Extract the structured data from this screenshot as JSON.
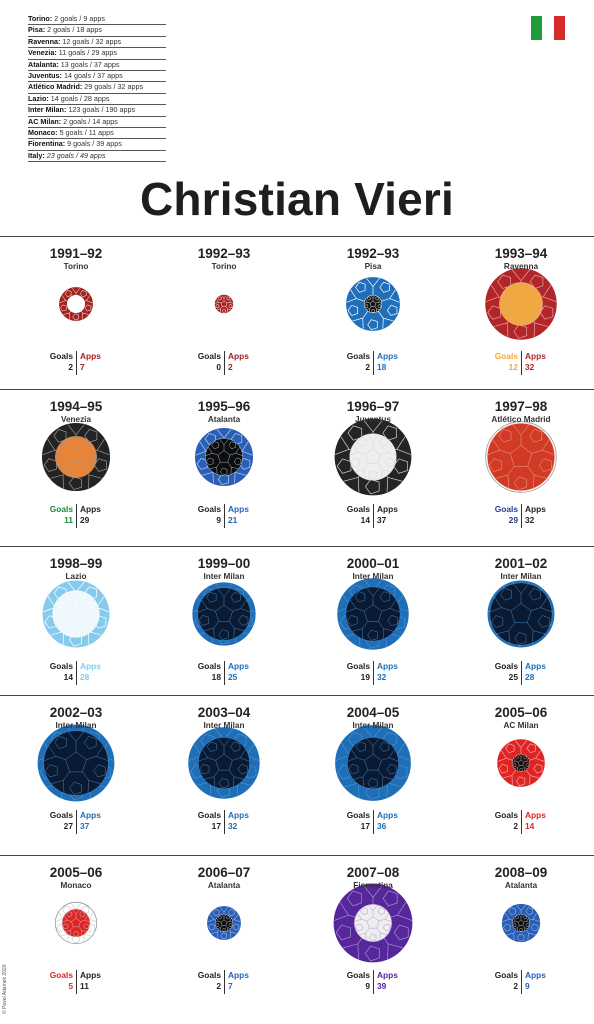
{
  "title": "Christian Vieri",
  "credit": "© Pavel Adamek 2020",
  "flag": {
    "colors": [
      "#1e9b3b",
      "#ffffff",
      "#d42b2b"
    ]
  },
  "summary": [
    {
      "club": "Torino:",
      "stats": "2 goals / 9 apps",
      "italic": false
    },
    {
      "club": "Pisa:",
      "stats": "2 goals / 18 apps",
      "italic": false
    },
    {
      "club": "Ravenna:",
      "stats": "12 goals / 32 apps",
      "italic": false
    },
    {
      "club": "Venezia:",
      "stats": "11 goals / 29 apps",
      "italic": false
    },
    {
      "club": "Atalanta:",
      "stats": "13 goals / 37 apps",
      "italic": false
    },
    {
      "club": "Juventus:",
      "stats": "14 goals / 37 apps",
      "italic": false
    },
    {
      "club": "Atlético Madrid:",
      "stats": "29 goals / 32 apps",
      "italic": false
    },
    {
      "club": "Lazio:",
      "stats": "14 goals / 28 apps",
      "italic": false
    },
    {
      "club": "Inter Milan:",
      "stats": "123 goals / 190 apps",
      "italic": false
    },
    {
      "club": "AC Milan:",
      "stats": "2 goals / 14 apps",
      "italic": false
    },
    {
      "club": "Monaco:",
      "stats": "5 goals / 11 apps",
      "italic": false
    },
    {
      "club": "Fiorentina:",
      "stats": "9 goals / 39 apps",
      "italic": false
    },
    {
      "club": "Italy:",
      "stats": "23 goals / 49 apps",
      "italic": true
    }
  ],
  "labels": {
    "goals": "Goals",
    "apps": "Apps"
  },
  "chart_data": {
    "type": "scatter",
    "encoding": "proportional-area balls: outer ball area = appearances, inner ball area = goals",
    "title": "Christian Vieri",
    "seasons": [
      {
        "season": "1991–92",
        "club": "Torino",
        "goals": 2,
        "apps": 7,
        "outer": "#a3231f",
        "inner": "#ffffff",
        "line": "#ffffff",
        "goalsColor": "#222222",
        "appsColor": "#a3231f"
      },
      {
        "season": "1992–93",
        "club": "Torino",
        "goals": 0,
        "apps": 2,
        "outer": "#a3231f",
        "inner": "#ffffff",
        "line": "#ffffff",
        "goalsColor": "#222222",
        "appsColor": "#a3231f"
      },
      {
        "season": "1992–93",
        "club": "Pisa",
        "goals": 2,
        "apps": 18,
        "outer": "#1f6fba",
        "inner": "#111111",
        "line": "#ffffff",
        "goalsColor": "#222222",
        "appsColor": "#1f6fba"
      },
      {
        "season": "1993–94",
        "club": "Ravenna",
        "goals": 12,
        "apps": 32,
        "outer": "#b2262a",
        "inner": "#f2a93b",
        "line": "#e7a3a3",
        "goalsColor": "#f2a93b",
        "appsColor": "#b2262a"
      },
      {
        "season": "1994–95",
        "club": "Venezia",
        "goals": 11,
        "apps": 29,
        "outer": "#232323",
        "inner": "#ea8434",
        "line": "#9a9a9a",
        "goalsColor": "#1c8a3a",
        "appsColor": "#222222"
      },
      {
        "season": "1995–96",
        "club": "Atalanta",
        "goals": 9,
        "apps": 21,
        "outer": "#2a5fb8",
        "inner": "#0d0d0d",
        "line": "#b9cbe8",
        "goalsColor": "#222222",
        "appsColor": "#2a5fb8"
      },
      {
        "season": "1996–97",
        "club": "Juventus",
        "goals": 14,
        "apps": 37,
        "outer": "#242424",
        "inner": "#eeeeee",
        "line": "#d0d0d0",
        "goalsColor": "#222222",
        "appsColor": "#222222"
      },
      {
        "season": "1997–98",
        "club": "Atlético Madrid",
        "goals": 29,
        "apps": 32,
        "outer": "#ffffff",
        "inner": "#d13b25",
        "line": "#f3b0a5",
        "goalsColor": "#2b3a8a",
        "appsColor": "#222222"
      },
      {
        "season": "1998–99",
        "club": "Lazio",
        "goals": 14,
        "apps": 28,
        "outer": "#86cbed",
        "inner": "#eef7fc",
        "line": "#ffffff",
        "goalsColor": "#222222",
        "appsColor": "#86cbed"
      },
      {
        "season": "1999–00",
        "club": "Inter Milan",
        "goals": 18,
        "apps": 25,
        "outer": "#1e6fb8",
        "inner": "#0a1a33",
        "line": "#4d8fcf",
        "goalsColor": "#222222",
        "appsColor": "#1e6fb8"
      },
      {
        "season": "2000–01",
        "club": "Inter Milan",
        "goals": 19,
        "apps": 32,
        "outer": "#1e6fb8",
        "inner": "#0a1a33",
        "line": "#4d8fcf",
        "goalsColor": "#222222",
        "appsColor": "#1e6fb8"
      },
      {
        "season": "2001–02",
        "club": "Inter Milan",
        "goals": 25,
        "apps": 28,
        "outer": "#1e6fb8",
        "inner": "#0a1a33",
        "line": "#4d8fcf",
        "goalsColor": "#222222",
        "appsColor": "#1e6fb8"
      },
      {
        "season": "2002–03",
        "club": "Inter Milan",
        "goals": 27,
        "apps": 37,
        "outer": "#1e6fb8",
        "inner": "#0a1a33",
        "line": "#4d8fcf",
        "goalsColor": "#222222",
        "appsColor": "#1e6fb8"
      },
      {
        "season": "2003–04",
        "club": "Inter Milan",
        "goals": 17,
        "apps": 32,
        "outer": "#1e6fb8",
        "inner": "#0a1a33",
        "line": "#4d8fcf",
        "goalsColor": "#222222",
        "appsColor": "#1e6fb8"
      },
      {
        "season": "2004–05",
        "club": "Inter Milan",
        "goals": 17,
        "apps": 36,
        "outer": "#1e6fb8",
        "inner": "#0a1a33",
        "line": "#4d8fcf",
        "goalsColor": "#222222",
        "appsColor": "#1e6fb8"
      },
      {
        "season": "2005–06",
        "club": "AC Milan",
        "goals": 2,
        "apps": 14,
        "outer": "#e02424",
        "inner": "#111111",
        "line": "#f7a0a0",
        "goalsColor": "#222222",
        "appsColor": "#e02424"
      },
      {
        "season": "2005–06",
        "club": "Monaco",
        "goals": 5,
        "apps": 11,
        "outer": "#ffffff",
        "inner": "#e02424",
        "line": "#cccccc",
        "goalsColor": "#e02424",
        "appsColor": "#222222"
      },
      {
        "season": "2006–07",
        "club": "Atalanta",
        "goals": 2,
        "apps": 7,
        "outer": "#2a5fb8",
        "inner": "#0d0d0d",
        "line": "#b9cbe8",
        "goalsColor": "#222222",
        "appsColor": "#2a5fb8"
      },
      {
        "season": "2007–08",
        "club": "Fiorentina",
        "goals": 9,
        "apps": 39,
        "outer": "#55279a",
        "inner": "#eeeeee",
        "line": "#a88fd0",
        "goalsColor": "#222222",
        "appsColor": "#55279a"
      },
      {
        "season": "2008–09",
        "club": "Atalanta",
        "goals": 2,
        "apps": 9,
        "outer": "#2a5fb8",
        "inner": "#0d0d0d",
        "line": "#b9cbe8",
        "goalsColor": "#222222",
        "appsColor": "#2a5fb8"
      }
    ]
  }
}
